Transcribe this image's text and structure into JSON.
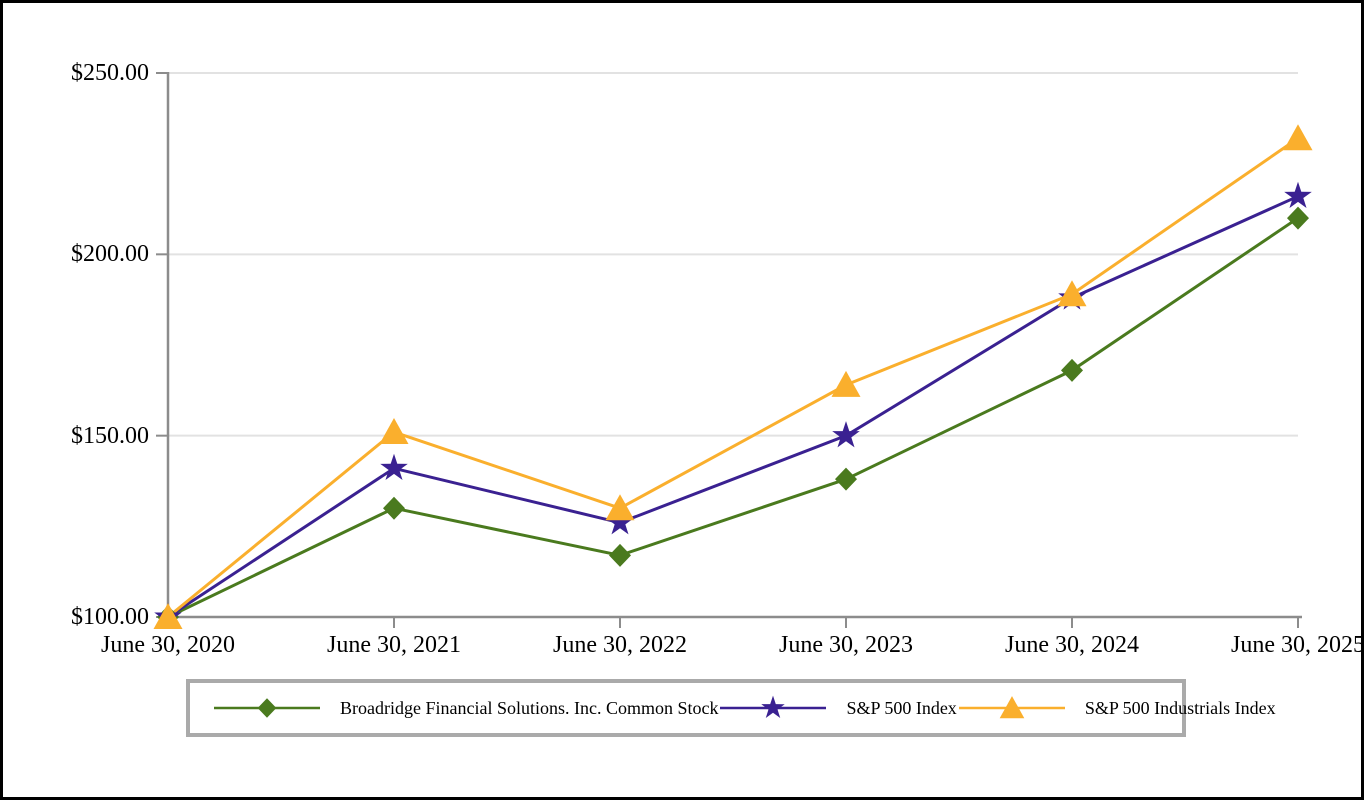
{
  "chart_data": {
    "type": "line",
    "title": "",
    "x_categories": [
      "June 30, 2020",
      "June 30, 2021",
      "June 30, 2022",
      "June 30, 2023",
      "June 30, 2024",
      "June 30, 2025"
    ],
    "y_tick_values": [
      100,
      150,
      200,
      250
    ],
    "y_tick_labels": [
      "$100.00",
      "$150.00",
      "$200.00",
      "$250.00"
    ],
    "ylim": [
      100,
      250
    ],
    "grid": true,
    "legend_position": "bottom",
    "series": [
      {
        "name": "Broadridge Financial Solutions. Inc. Common Stock",
        "marker": "diamond",
        "color": "#4a7a1e",
        "values": [
          100,
          130,
          117,
          138,
          168,
          210
        ]
      },
      {
        "name": "S&P 500 Index",
        "marker": "star",
        "color": "#3a2191",
        "values": [
          100,
          141,
          126,
          150,
          188,
          216
        ]
      },
      {
        "name": "S&P 500 Industrials Index",
        "marker": "triangle",
        "color": "#faaf2d",
        "values": [
          100,
          151,
          130,
          164,
          189,
          232
        ]
      }
    ],
    "colors": {
      "axis": "#8c8c8c",
      "gridline": "#e2e2e2",
      "legend_border": "#aaaaaa",
      "page_border": "#000000"
    }
  }
}
